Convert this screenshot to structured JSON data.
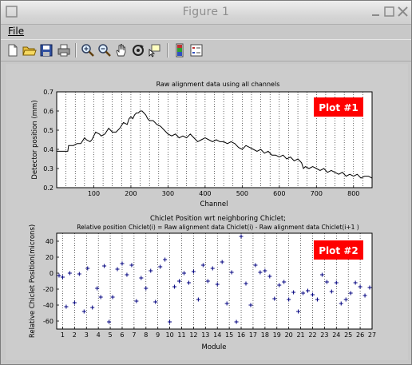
{
  "window": {
    "title": "Figure 1"
  },
  "menu": {
    "file": "File"
  },
  "toolbar": {
    "icons": [
      "new-file-icon",
      "open-folder-icon",
      "save-icon",
      "print-icon",
      "zoom-in-icon",
      "zoom-out-icon",
      "pan-hand-icon",
      "rotate-3d-icon",
      "data-cursor-icon",
      "colorbar-icon",
      "legend-icon"
    ]
  },
  "plot1": {
    "title": "Raw alignment data using all channels",
    "xlabel": "Channel",
    "ylabel": "Detector position (mm)",
    "badge": "Plot #1",
    "xticks": [
      "100",
      "200",
      "300",
      "400",
      "500",
      "600",
      "700",
      "800"
    ],
    "yticks": [
      "0.2",
      "0.3",
      "0.4",
      "0.5",
      "0.6",
      "0.7"
    ]
  },
  "plot2": {
    "title_line1": "Chiclet Position wrt neighboring Chiclet;",
    "title_line2": "Relative position Chiclet(i) = Raw alignment data Chiclet(i) - Raw alignment data Chiclet(i+1 )",
    "xlabel": "Module",
    "ylabel": "Relative Chiclet Position(microns)",
    "badge": "Plot #2",
    "xticks": [
      "1",
      "2",
      "3",
      "4",
      "5",
      "6",
      "7",
      "8",
      "9",
      "10",
      "11",
      "12",
      "13",
      "14",
      "15",
      "16",
      "17",
      "18",
      "19",
      "20",
      "21",
      "22",
      "23",
      "24",
      "25",
      "26",
      "27"
    ],
    "yticks": [
      "-60",
      "-40",
      "-20",
      "0",
      "20",
      "40"
    ]
  },
  "colors": {
    "line": "#000000",
    "marker": "#00007f",
    "badge_bg": "#ff0000",
    "badge_text": "#ffffff"
  },
  "chart_data": [
    {
      "type": "line",
      "title": "Raw alignment data using all channels",
      "xlabel": "Channel",
      "ylabel": "Detector position (mm)",
      "xlim": [
        0,
        850
      ],
      "ylim": [
        0.2,
        0.7
      ],
      "grid": "vertical dotted lines",
      "x": [
        0,
        30,
        32,
        45,
        55,
        65,
        75,
        80,
        90,
        95,
        105,
        115,
        120,
        130,
        140,
        150,
        160,
        170,
        180,
        190,
        195,
        200,
        205,
        210,
        215,
        220,
        225,
        230,
        235,
        240,
        245,
        250,
        260,
        270,
        280,
        290,
        300,
        310,
        320,
        330,
        340,
        350,
        360,
        370,
        380,
        390,
        400,
        410,
        420,
        430,
        440,
        450,
        460,
        470,
        480,
        490,
        500,
        510,
        520,
        530,
        540,
        550,
        560,
        570,
        580,
        590,
        600,
        610,
        620,
        630,
        640,
        650,
        660,
        665,
        670,
        680,
        690,
        700,
        710,
        720,
        730,
        740,
        750,
        760,
        770,
        780,
        790,
        800,
        810,
        820,
        830,
        840,
        850
      ],
      "y": [
        0.39,
        0.39,
        0.42,
        0.42,
        0.43,
        0.43,
        0.46,
        0.45,
        0.44,
        0.45,
        0.49,
        0.48,
        0.47,
        0.48,
        0.51,
        0.49,
        0.49,
        0.51,
        0.54,
        0.53,
        0.56,
        0.57,
        0.56,
        0.58,
        0.59,
        0.59,
        0.6,
        0.6,
        0.59,
        0.58,
        0.56,
        0.55,
        0.55,
        0.53,
        0.52,
        0.5,
        0.48,
        0.47,
        0.48,
        0.46,
        0.47,
        0.46,
        0.48,
        0.46,
        0.44,
        0.45,
        0.46,
        0.45,
        0.44,
        0.45,
        0.44,
        0.44,
        0.43,
        0.44,
        0.43,
        0.41,
        0.4,
        0.42,
        0.41,
        0.4,
        0.39,
        0.4,
        0.38,
        0.39,
        0.37,
        0.37,
        0.36,
        0.37,
        0.35,
        0.36,
        0.34,
        0.35,
        0.33,
        0.3,
        0.31,
        0.3,
        0.31,
        0.3,
        0.29,
        0.3,
        0.28,
        0.29,
        0.28,
        0.27,
        0.28,
        0.26,
        0.27,
        0.26,
        0.27,
        0.25,
        0.26,
        0.26,
        0.25
      ]
    },
    {
      "type": "scatter",
      "title": "Chiclet Position wrt neighboring Chiclet;",
      "subtitle": "Relative position Chiclet(i) = Raw alignment data Chiclet(i) - Raw alignment data Chiclet(i+1 )",
      "xlabel": "Module",
      "ylabel": "Relative Chiclet Position(microns)",
      "xlim": [
        0.5,
        27
      ],
      "ylim": [
        -70,
        50
      ],
      "grid": "vertical dotted lines",
      "marker": "+",
      "x": [
        0.7,
        1,
        1.3,
        1.6,
        2,
        2.4,
        2.8,
        3.1,
        3.5,
        3.9,
        4.2,
        4.5,
        4.9,
        5.2,
        5.6,
        6,
        6.4,
        6.8,
        7.2,
        7.6,
        8,
        8.4,
        8.8,
        9.2,
        9.6,
        10,
        10.4,
        10.8,
        11.2,
        11.6,
        12,
        12.4,
        12.8,
        13.2,
        13.6,
        14,
        14.4,
        14.8,
        15.2,
        15.6,
        16,
        16.4,
        16.8,
        17.2,
        17.6,
        18,
        18.4,
        18.8,
        19.2,
        19.6,
        20,
        20.4,
        20.8,
        21.2,
        21.6,
        22,
        22.4,
        22.8,
        23.2,
        23.6,
        24,
        24.4,
        24.8,
        25.2,
        25.6,
        26,
        26.4,
        26.8
      ],
      "y": [
        -3,
        -5,
        -42,
        0,
        -37,
        -1,
        -48,
        6,
        -43,
        -19,
        -30,
        9,
        -61,
        -30,
        5,
        12,
        -2,
        10,
        -35,
        -6,
        -19,
        3,
        -36,
        8,
        17,
        -61,
        -17,
        -10,
        0,
        -12,
        2,
        -33,
        10,
        -10,
        6,
        -14,
        14,
        -38,
        1,
        -61,
        46,
        -13,
        -40,
        10,
        1,
        3,
        -4,
        -32,
        -15,
        -11,
        -33,
        -24,
        -48,
        -25,
        -22,
        -27,
        -33,
        -2,
        -11,
        -23,
        -12,
        -38,
        -33,
        -25,
        -12,
        -17,
        -28,
        -18
      ]
    }
  ]
}
